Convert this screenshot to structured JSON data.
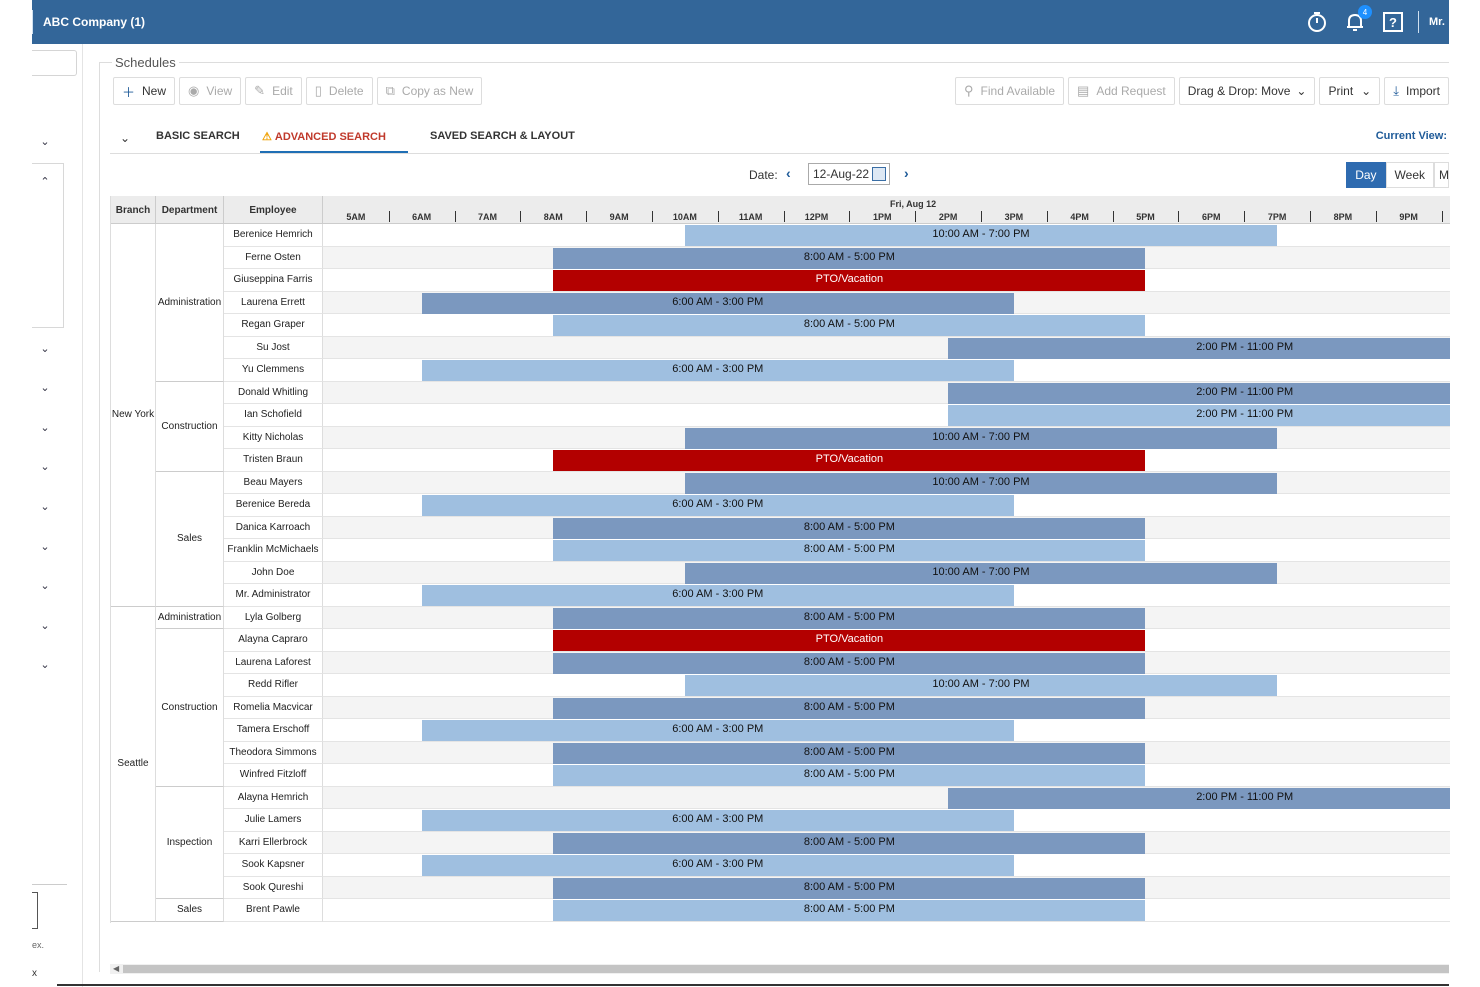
{
  "app": {
    "title": "ABC Company (1)",
    "user": "Mr.",
    "notif_count": "4"
  },
  "sidebar": {
    "text1": "ex.",
    "text2": "x"
  },
  "page": {
    "section_title": "Schedules"
  },
  "toolbar": {
    "new": "New",
    "view": "View",
    "edit": "Edit",
    "delete": "Delete",
    "copy_as_new": "Copy as New",
    "find_available": "Find Available",
    "add_request": "Add Request",
    "drag_drop": "Drag & Drop: Move",
    "print": "Print",
    "import": "Import"
  },
  "tabs": {
    "basic": "BASIC SEARCH",
    "advanced": "ADVANCED SEARCH",
    "saved": "SAVED SEARCH & LAYOUT",
    "current_view": "Current View:"
  },
  "datebar": {
    "label": "Date:",
    "value": "12-Aug-22",
    "day": "Day",
    "week": "Week",
    "month": "M"
  },
  "grid": {
    "headers": {
      "branch": "Branch",
      "department": "Department",
      "employee": "Employee"
    },
    "date_heading": "Fri, Aug 12",
    "hours": [
      "5AM",
      "6AM",
      "7AM",
      "8AM",
      "9AM",
      "10AM",
      "11AM",
      "12PM",
      "1PM",
      "2PM",
      "3PM",
      "4PM",
      "5PM",
      "6PM",
      "7PM",
      "8PM",
      "9PM"
    ]
  },
  "colors": {
    "topbar": "#336699",
    "shift_dark": "#7b98bf",
    "shift_light": "#9fbfe0",
    "pto": "#b30000",
    "active_tab": "#c0392b"
  },
  "chart_data": {
    "type": "table",
    "branches": [
      {
        "name": "New York",
        "departments": [
          {
            "name": "Administration",
            "employees": [
              {
                "name": "Berenice Hemrich",
                "shift": "10:00 AM - 7:00 PM",
                "start": 10,
                "end": 19,
                "kind": "light"
              },
              {
                "name": "Ferne Osten",
                "shift": "8:00 AM - 5:00 PM",
                "start": 8,
                "end": 17,
                "kind": "dark"
              },
              {
                "name": "Giuseppina Farris",
                "shift": "PTO/Vacation",
                "start": 8,
                "end": 17,
                "kind": "pto"
              },
              {
                "name": "Laurena Errett",
                "shift": "6:00 AM - 3:00 PM",
                "start": 6,
                "end": 15,
                "kind": "dark"
              },
              {
                "name": "Regan Graper",
                "shift": "8:00 AM - 5:00 PM",
                "start": 8,
                "end": 17,
                "kind": "light"
              },
              {
                "name": "Su Jost",
                "shift": "2:00 PM - 11:00 PM",
                "start": 14,
                "end": 23,
                "kind": "dark"
              },
              {
                "name": "Yu Clemmens",
                "shift": "6:00 AM - 3:00 PM",
                "start": 6,
                "end": 15,
                "kind": "light"
              }
            ]
          },
          {
            "name": "Construction",
            "employees": [
              {
                "name": "Donald Whitling",
                "shift": "2:00 PM - 11:00 PM",
                "start": 14,
                "end": 23,
                "kind": "dark"
              },
              {
                "name": "Ian Schofield",
                "shift": "2:00 PM - 11:00 PM",
                "start": 14,
                "end": 23,
                "kind": "light"
              },
              {
                "name": "Kitty Nicholas",
                "shift": "10:00 AM - 7:00 PM",
                "start": 10,
                "end": 19,
                "kind": "dark"
              },
              {
                "name": "Tristen Braun",
                "shift": "PTO/Vacation",
                "start": 8,
                "end": 17,
                "kind": "pto"
              }
            ]
          },
          {
            "name": "Sales",
            "employees": [
              {
                "name": "Beau Mayers",
                "shift": "10:00 AM - 7:00 PM",
                "start": 10,
                "end": 19,
                "kind": "dark"
              },
              {
                "name": "Berenice Bereda",
                "shift": "6:00 AM - 3:00 PM",
                "start": 6,
                "end": 15,
                "kind": "light"
              },
              {
                "name": "Danica Karroach",
                "shift": "8:00 AM - 5:00 PM",
                "start": 8,
                "end": 17,
                "kind": "dark"
              },
              {
                "name": "Franklin McMichaels",
                "shift": "8:00 AM - 5:00 PM",
                "start": 8,
                "end": 17,
                "kind": "light"
              },
              {
                "name": "John Doe",
                "shift": "10:00 AM - 7:00 PM",
                "start": 10,
                "end": 19,
                "kind": "dark"
              },
              {
                "name": "Mr. Administrator",
                "shift": "6:00 AM - 3:00 PM",
                "start": 6,
                "end": 15,
                "kind": "light"
              }
            ]
          }
        ]
      },
      {
        "name": "Seattle",
        "departments": [
          {
            "name": "Administration",
            "employees": [
              {
                "name": "Lyla Golberg",
                "shift": "8:00 AM - 5:00 PM",
                "start": 8,
                "end": 17,
                "kind": "dark"
              }
            ]
          },
          {
            "name": "Construction",
            "employees": [
              {
                "name": "Alayna Capraro",
                "shift": "PTO/Vacation",
                "start": 8,
                "end": 17,
                "kind": "pto"
              },
              {
                "name": "Laurena Laforest",
                "shift": "8:00 AM - 5:00 PM",
                "start": 8,
                "end": 17,
                "kind": "dark"
              },
              {
                "name": "Redd Rifler",
                "shift": "10:00 AM - 7:00 PM",
                "start": 10,
                "end": 19,
                "kind": "light"
              },
              {
                "name": "Romelia Macvicar",
                "shift": "8:00 AM - 5:00 PM",
                "start": 8,
                "end": 17,
                "kind": "dark"
              },
              {
                "name": "Tamera Erschoff",
                "shift": "6:00 AM - 3:00 PM",
                "start": 6,
                "end": 15,
                "kind": "light"
              },
              {
                "name": "Theodora Simmons",
                "shift": "8:00 AM - 5:00 PM",
                "start": 8,
                "end": 17,
                "kind": "dark"
              },
              {
                "name": "Winfred Fitzloff",
                "shift": "8:00 AM - 5:00 PM",
                "start": 8,
                "end": 17,
                "kind": "light"
              }
            ]
          },
          {
            "name": "Inspection",
            "employees": [
              {
                "name": "Alayna Hemrich",
                "shift": "2:00 PM - 11:00 PM",
                "start": 14,
                "end": 23,
                "kind": "dark"
              },
              {
                "name": "Julie Lamers",
                "shift": "6:00 AM - 3:00 PM",
                "start": 6,
                "end": 15,
                "kind": "light"
              },
              {
                "name": "Karri Ellerbrock",
                "shift": "8:00 AM - 5:00 PM",
                "start": 8,
                "end": 17,
                "kind": "dark"
              },
              {
                "name": "Sook Kapsner",
                "shift": "6:00 AM - 3:00 PM",
                "start": 6,
                "end": 15,
                "kind": "light"
              },
              {
                "name": "Sook Qureshi",
                "shift": "8:00 AM - 5:00 PM",
                "start": 8,
                "end": 17,
                "kind": "dark"
              }
            ]
          },
          {
            "name": "Sales",
            "employees": [
              {
                "name": "Brent Pawle",
                "shift": "8:00 AM - 5:00 PM",
                "start": 8,
                "end": 17,
                "kind": "light"
              }
            ]
          }
        ]
      }
    ]
  }
}
